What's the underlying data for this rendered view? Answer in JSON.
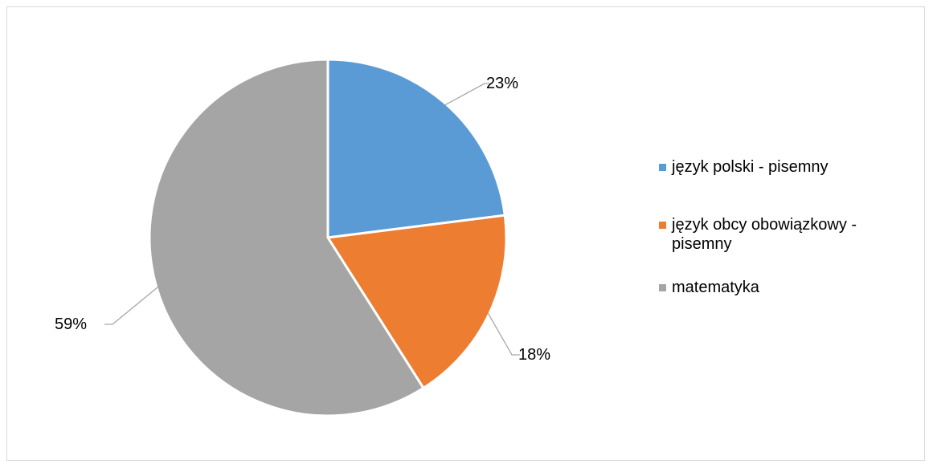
{
  "chart_data": {
    "type": "pie",
    "series": [
      {
        "name": "język polski - pisemny",
        "value": 23,
        "label": "23%",
        "color": "#5b9bd5"
      },
      {
        "name": "język obcy obowiązkowy - pisemny",
        "value": 18,
        "label": "18%",
        "color": "#ed7d31"
      },
      {
        "name": "matematyka",
        "value": 59,
        "label": "59%",
        "color": "#a5a5a5"
      }
    ],
    "legend_position": "right",
    "start_angle": "top, clockwise"
  },
  "legend": {
    "items": [
      {
        "label": "język polski - pisemny",
        "color": "#5b9bd5"
      },
      {
        "label": "język obcy obowiązkowy - pisemny",
        "color": "#ed7d31"
      },
      {
        "label": "matematyka",
        "color": "#a5a5a5"
      }
    ]
  }
}
